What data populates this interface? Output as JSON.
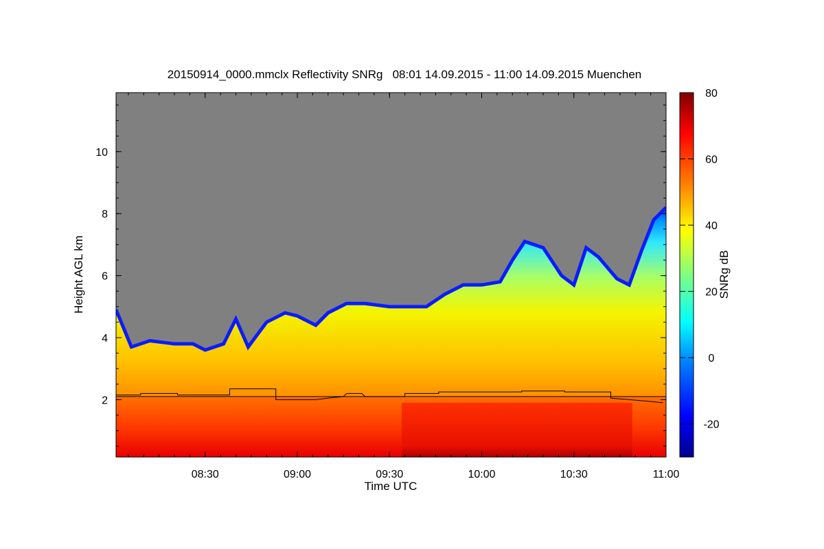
{
  "chart_data": {
    "type": "heatmap",
    "title": "20150914_0000.mmclx Reflectivity SNRg   08:01 14.09.2015 - 11:00 14.09.2015 Muenchen",
    "xlabel": "Time UTC",
    "ylabel": "Height AGL km",
    "colorbar_label": "SNRg dB",
    "x_range_minutes_utc": [
      481,
      660
    ],
    "y_range_km": [
      0.15,
      11.9
    ],
    "x_ticks": [
      {
        "value": 510,
        "label": "08:30"
      },
      {
        "value": 540,
        "label": "09:00"
      },
      {
        "value": 570,
        "label": "09:30"
      },
      {
        "value": 600,
        "label": "10:00"
      },
      {
        "value": 630,
        "label": "10:30"
      },
      {
        "value": 660,
        "label": "11:00"
      }
    ],
    "y_ticks": [
      {
        "value": 2,
        "label": "2"
      },
      {
        "value": 4,
        "label": "4"
      },
      {
        "value": 6,
        "label": "6"
      },
      {
        "value": 8,
        "label": "8"
      },
      {
        "value": 10,
        "label": "10"
      }
    ],
    "colorbar_range": [
      -30,
      80
    ],
    "colorbar_ticks": [
      {
        "value": -20,
        "label": "-20"
      },
      {
        "value": 0,
        "label": "0"
      },
      {
        "value": 20,
        "label": "20"
      },
      {
        "value": 40,
        "label": "40"
      },
      {
        "value": 60,
        "label": "60"
      },
      {
        "value": 80,
        "label": "80"
      }
    ],
    "colormap": [
      "#00008f",
      "#0000ff",
      "#0080ff",
      "#00ffff",
      "#80ff80",
      "#ffff00",
      "#ff8000",
      "#ff0000",
      "#800000"
    ],
    "no_signal_color": "#808080",
    "melting_layer_km": 2.1,
    "echo_top_km": [
      [
        481,
        4.9
      ],
      [
        486,
        3.7
      ],
      [
        492,
        3.9
      ],
      [
        500,
        3.8
      ],
      [
        506,
        3.8
      ],
      [
        510,
        3.6
      ],
      [
        516,
        3.8
      ],
      [
        520,
        4.6
      ],
      [
        524,
        3.7
      ],
      [
        530,
        4.5
      ],
      [
        536,
        4.8
      ],
      [
        540,
        4.7
      ],
      [
        546,
        4.4
      ],
      [
        550,
        4.8
      ],
      [
        556,
        5.1
      ],
      [
        562,
        5.1
      ],
      [
        570,
        5.0
      ],
      [
        576,
        5.0
      ],
      [
        582,
        5.0
      ],
      [
        588,
        5.4
      ],
      [
        594,
        5.7
      ],
      [
        600,
        5.7
      ],
      [
        606,
        5.8
      ],
      [
        610,
        6.5
      ],
      [
        614,
        7.1
      ],
      [
        620,
        6.9
      ],
      [
        626,
        6.0
      ],
      [
        630,
        5.7
      ],
      [
        634,
        6.9
      ],
      [
        638,
        6.6
      ],
      [
        644,
        5.9
      ],
      [
        648,
        5.7
      ],
      [
        652,
        6.8
      ],
      [
        656,
        7.8
      ],
      [
        660,
        8.2
      ]
    ],
    "cloud_base_line_km": [
      [
        481,
        2.15
      ],
      [
        489,
        2.15
      ],
      [
        489,
        2.2
      ],
      [
        501,
        2.2
      ],
      [
        501,
        2.15
      ],
      [
        518,
        2.15
      ],
      [
        518,
        2.35
      ],
      [
        533,
        2.35
      ],
      [
        533,
        2.0
      ],
      [
        546,
        2.0
      ],
      [
        550,
        2.05
      ],
      [
        555,
        2.1
      ],
      [
        556,
        2.2
      ],
      [
        561,
        2.2
      ],
      [
        562,
        2.1
      ],
      [
        575,
        2.1
      ],
      [
        575,
        2.2
      ],
      [
        586,
        2.2
      ],
      [
        586,
        2.25
      ],
      [
        613,
        2.25
      ],
      [
        613,
        2.28
      ],
      [
        627,
        2.28
      ],
      [
        627,
        2.25
      ],
      [
        642,
        2.25
      ],
      [
        642,
        2.05
      ],
      [
        648,
        2.0
      ],
      [
        654,
        1.95
      ],
      [
        659,
        1.9
      ]
    ]
  }
}
